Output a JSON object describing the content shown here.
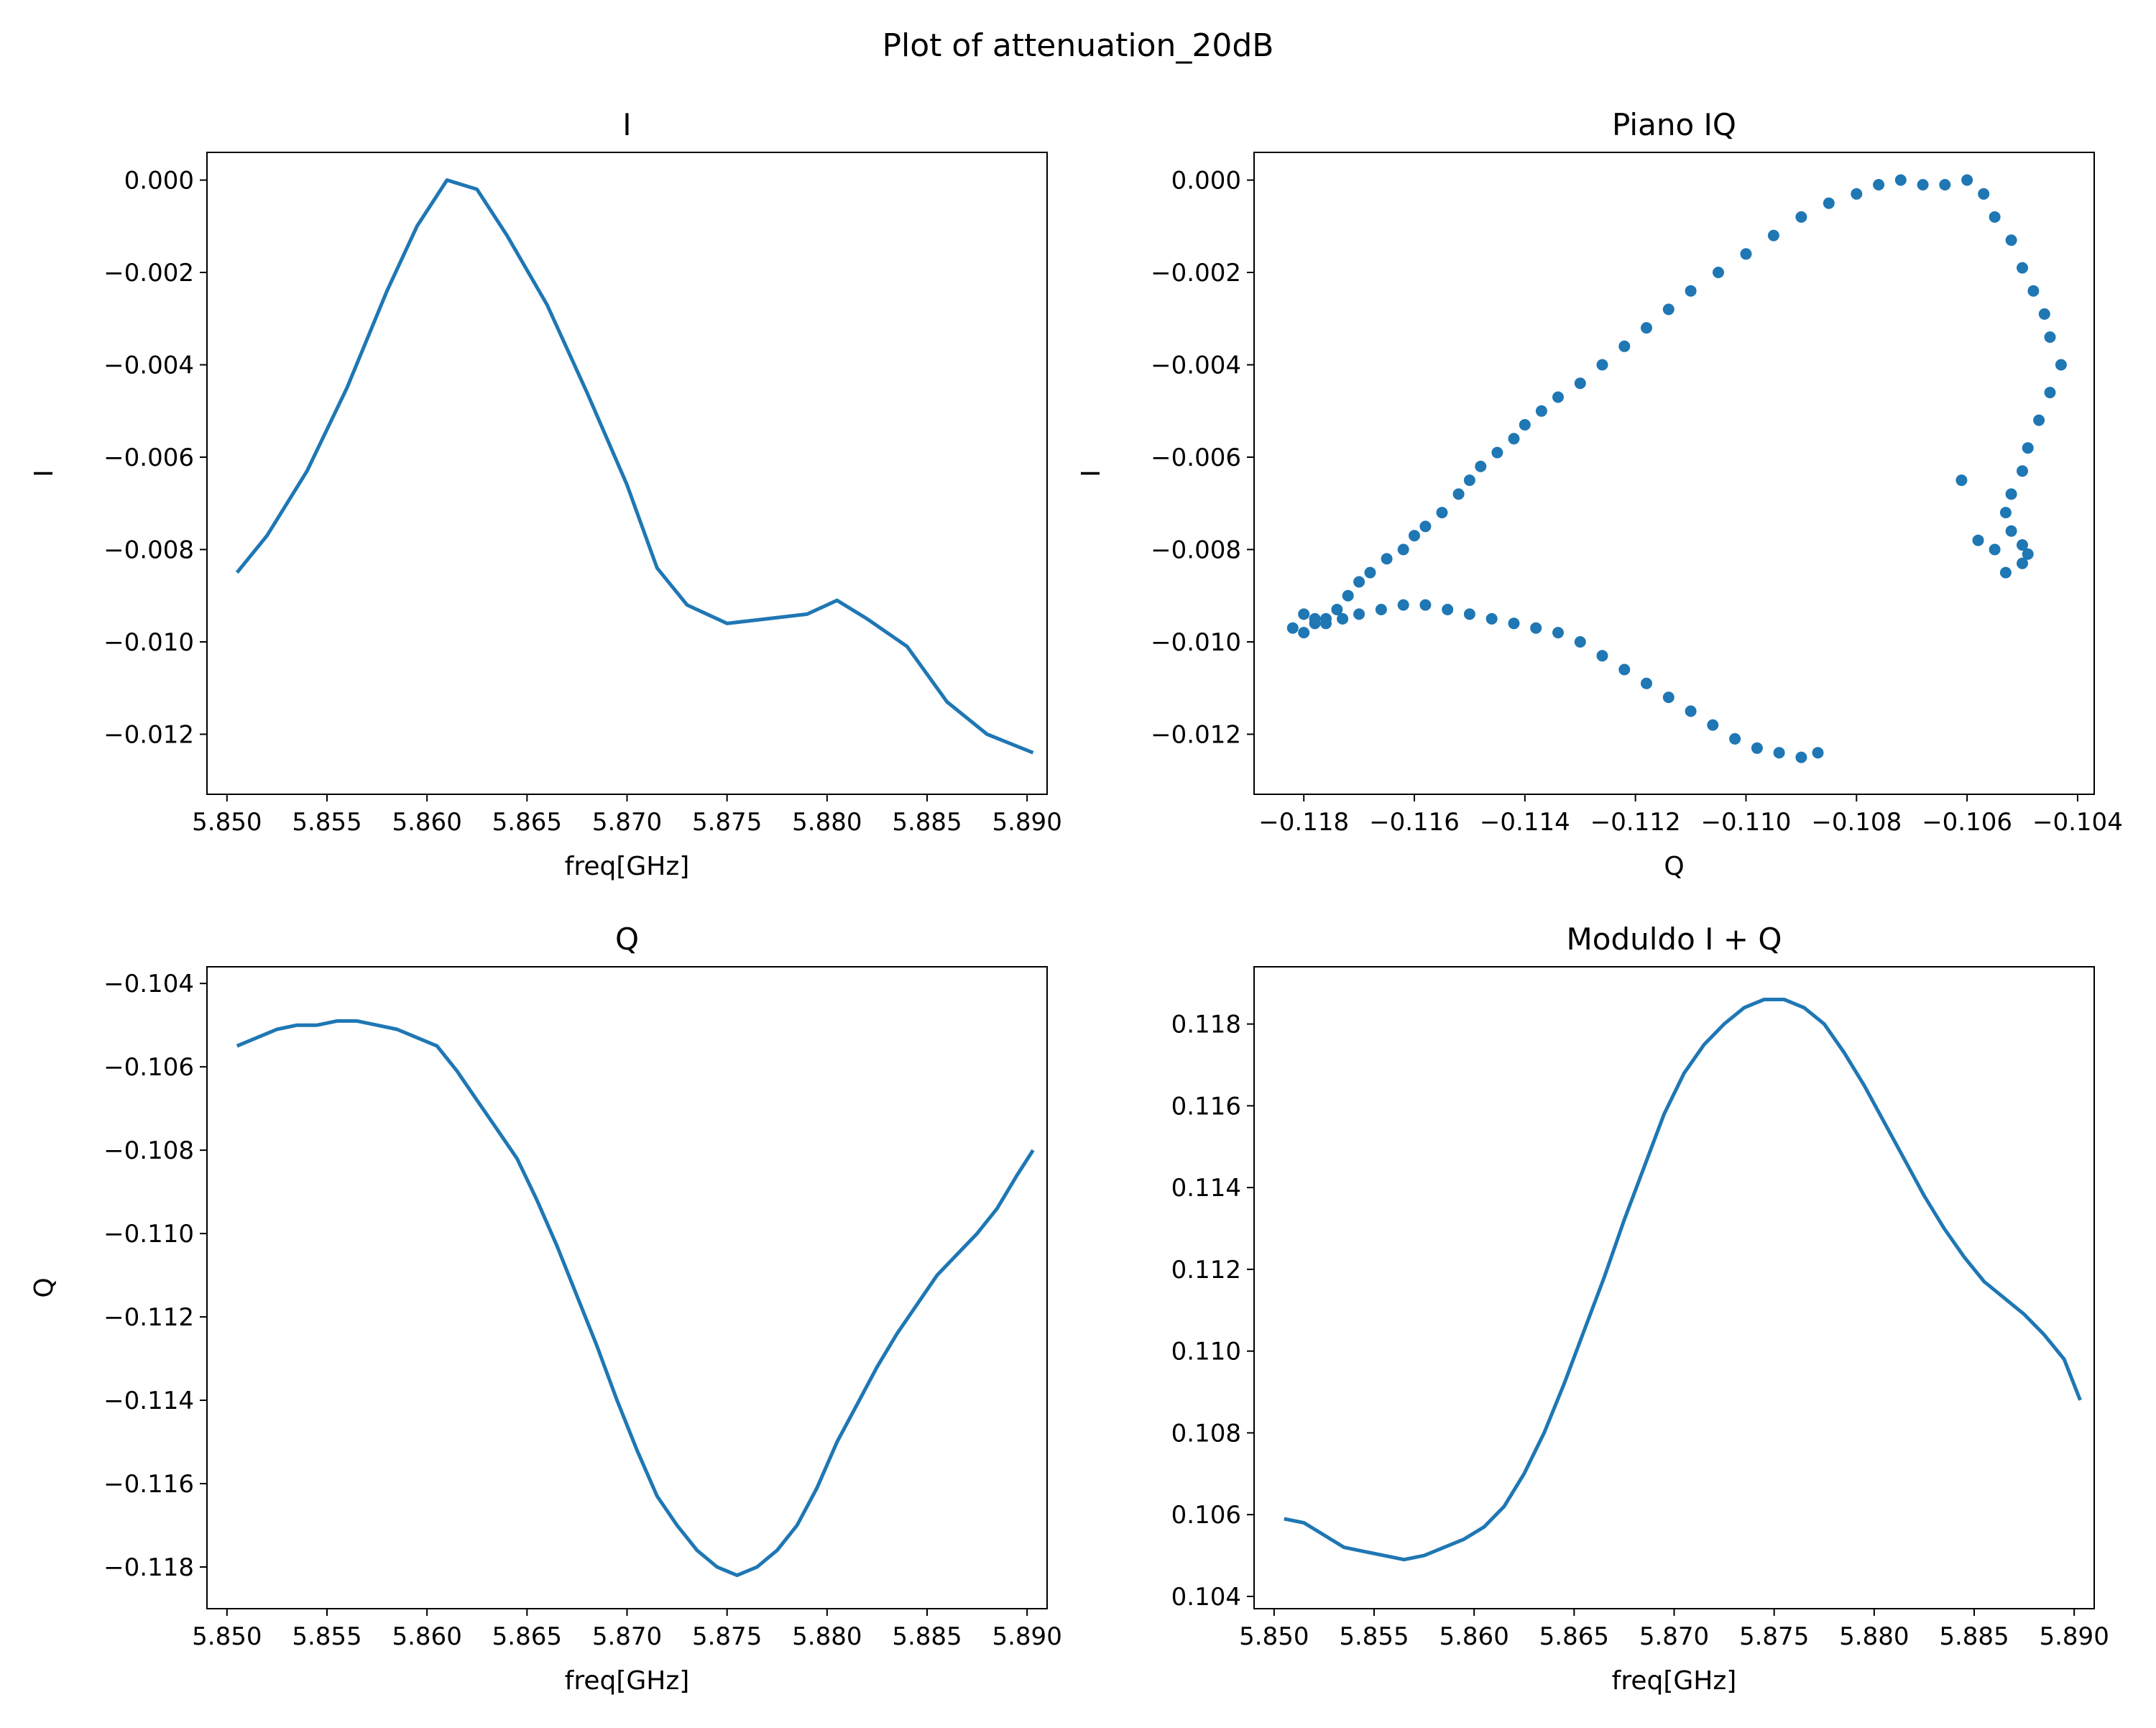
{
  "suptitle": "Plot of attenuation_20dB",
  "colors": {
    "series": "#1f77b4",
    "axes": "#000000",
    "background": "#ffffff"
  },
  "chart_data": [
    {
      "type": "line",
      "title": "I",
      "xlabel": "freq[GHz]",
      "ylabel": "I",
      "xlim": [
        5.849,
        5.891
      ],
      "ylim": [
        -0.0133,
        0.0006
      ],
      "xticks": [
        5.85,
        5.855,
        5.86,
        5.865,
        5.87,
        5.875,
        5.88,
        5.885,
        5.89
      ],
      "xtick_labels": [
        "5.850",
        "5.855",
        "5.860",
        "5.865",
        "5.870",
        "5.875",
        "5.880",
        "5.885",
        "5.890"
      ],
      "yticks": [
        0.0,
        -0.002,
        -0.004,
        -0.006,
        -0.008,
        -0.01,
        -0.012
      ],
      "ytick_labels": [
        "0.000",
        "−0.002",
        "−0.004",
        "−0.006",
        "−0.008",
        "−0.010",
        "−0.012"
      ],
      "grid": false,
      "x": [
        5.8505,
        5.852,
        5.854,
        5.856,
        5.858,
        5.8595,
        5.861,
        5.8625,
        5.864,
        5.866,
        5.868,
        5.87,
        5.8715,
        5.873,
        5.875,
        5.877,
        5.879,
        5.8805,
        5.882,
        5.884,
        5.886,
        5.888,
        5.8903
      ],
      "y": [
        -0.0085,
        -0.0077,
        -0.0063,
        -0.0045,
        -0.0024,
        -0.001,
        0.0,
        -0.0002,
        -0.0012,
        -0.0027,
        -0.0046,
        -0.0066,
        -0.0084,
        -0.0092,
        -0.0096,
        -0.0095,
        -0.0094,
        -0.0091,
        -0.0095,
        -0.0101,
        -0.0113,
        -0.012,
        -0.0124
      ]
    },
    {
      "type": "scatter",
      "title": "Piano IQ",
      "xlabel": "Q",
      "ylabel": "I",
      "xlim": [
        -0.1189,
        -0.1037
      ],
      "ylim": [
        -0.0133,
        0.0006
      ],
      "xticks": [
        -0.118,
        -0.116,
        -0.114,
        -0.112,
        -0.11,
        -0.108,
        -0.106,
        -0.104
      ],
      "xtick_labels": [
        "−0.118",
        "−0.116",
        "−0.114",
        "−0.112",
        "−0.110",
        "−0.108",
        "−0.106",
        "−0.104"
      ],
      "yticks": [
        0.0,
        -0.002,
        -0.004,
        -0.006,
        -0.008,
        -0.01,
        -0.012
      ],
      "ytick_labels": [
        "0.000",
        "−0.002",
        "−0.004",
        "−0.006",
        "−0.008",
        "−0.010",
        "−0.012"
      ],
      "grid": false,
      "x": [
        -0.1182,
        -0.118,
        -0.1178,
        -0.1176,
        -0.1174,
        -0.1172,
        -0.117,
        -0.1168,
        -0.1165,
        -0.1162,
        -0.116,
        -0.1158,
        -0.1155,
        -0.1152,
        -0.115,
        -0.1148,
        -0.1145,
        -0.1142,
        -0.114,
        -0.1137,
        -0.1134,
        -0.113,
        -0.1126,
        -0.1122,
        -0.1118,
        -0.1114,
        -0.111,
        -0.1105,
        -0.11,
        -0.1095,
        -0.109,
        -0.1085,
        -0.108,
        -0.1076,
        -0.1072,
        -0.1068,
        -0.1064,
        -0.106,
        -0.1057,
        -0.1055,
        -0.1052,
        -0.105,
        -0.1048,
        -0.1046,
        -0.1045,
        -0.1043,
        -0.1045,
        -0.1047,
        -0.1049,
        -0.105,
        -0.1052,
        -0.1053,
        -0.1052,
        -0.105,
        -0.1049,
        -0.105,
        -0.1053,
        -0.1055,
        -0.1058,
        -0.1061,
        -0.118,
        -0.1178,
        -0.1176,
        -0.1173,
        -0.117,
        -0.1166,
        -0.1162,
        -0.1158,
        -0.1154,
        -0.115,
        -0.1146,
        -0.1142,
        -0.1138,
        -0.1134,
        -0.113,
        -0.1126,
        -0.1122,
        -0.1118,
        -0.1114,
        -0.111,
        -0.1106,
        -0.1102,
        -0.1098,
        -0.1094,
        -0.109,
        -0.1087
      ],
      "y": [
        -0.0097,
        -0.0098,
        -0.0096,
        -0.0095,
        -0.0093,
        -0.009,
        -0.0087,
        -0.0085,
        -0.0082,
        -0.008,
        -0.0077,
        -0.0075,
        -0.0072,
        -0.0068,
        -0.0065,
        -0.0062,
        -0.0059,
        -0.0056,
        -0.0053,
        -0.005,
        -0.0047,
        -0.0044,
        -0.004,
        -0.0036,
        -0.0032,
        -0.0028,
        -0.0024,
        -0.002,
        -0.0016,
        -0.0012,
        -0.0008,
        -0.0005,
        -0.0003,
        -0.0001,
        0.0,
        -0.0001,
        -0.0001,
        0.0,
        -0.0003,
        -0.0008,
        -0.0013,
        -0.0019,
        -0.0024,
        -0.0029,
        -0.0034,
        -0.004,
        -0.0046,
        -0.0052,
        -0.0058,
        -0.0063,
        -0.0068,
        -0.0072,
        -0.0076,
        -0.0079,
        -0.0081,
        -0.0083,
        -0.0085,
        -0.008,
        -0.0078,
        -0.0065,
        -0.0094,
        -0.0095,
        -0.0096,
        -0.0095,
        -0.0094,
        -0.0093,
        -0.0092,
        -0.0092,
        -0.0093,
        -0.0094,
        -0.0095,
        -0.0096,
        -0.0097,
        -0.0098,
        -0.01,
        -0.0103,
        -0.0106,
        -0.0109,
        -0.0112,
        -0.0115,
        -0.0118,
        -0.0121,
        -0.0123,
        -0.0124,
        -0.0125,
        -0.0124
      ]
    },
    {
      "type": "line",
      "title": "Q",
      "xlabel": "freq[GHz]",
      "ylabel": "Q",
      "xlim": [
        5.849,
        5.891
      ],
      "ylim": [
        -0.119,
        -0.1036
      ],
      "xticks": [
        5.85,
        5.855,
        5.86,
        5.865,
        5.87,
        5.875,
        5.88,
        5.885,
        5.89
      ],
      "xtick_labels": [
        "5.850",
        "5.855",
        "5.860",
        "5.865",
        "5.870",
        "5.875",
        "5.880",
        "5.885",
        "5.890"
      ],
      "yticks": [
        -0.104,
        -0.106,
        -0.108,
        -0.11,
        -0.112,
        -0.114,
        -0.116,
        -0.118
      ],
      "ytick_labels": [
        "−0.104",
        "−0.106",
        "−0.108",
        "−0.110",
        "−0.112",
        "−0.114",
        "−0.116",
        "−0.118"
      ],
      "grid": false,
      "x": [
        5.8505,
        5.8515,
        5.8525,
        5.8535,
        5.8545,
        5.8555,
        5.8565,
        5.8575,
        5.8585,
        5.8595,
        5.8605,
        5.8615,
        5.8625,
        5.8635,
        5.8645,
        5.8655,
        5.8665,
        5.8675,
        5.8685,
        5.8695,
        5.8705,
        5.8715,
        5.8725,
        5.8735,
        5.8745,
        5.8755,
        5.8765,
        5.8775,
        5.8785,
        5.8795,
        5.8805,
        5.8815,
        5.8825,
        5.8835,
        5.8845,
        5.8855,
        5.8865,
        5.8875,
        5.8885,
        5.8895,
        5.8903
      ],
      "y": [
        -0.1055,
        -0.1053,
        -0.1051,
        -0.105,
        -0.105,
        -0.1049,
        -0.1049,
        -0.105,
        -0.1051,
        -0.1053,
        -0.1055,
        -0.1061,
        -0.1068,
        -0.1075,
        -0.1082,
        -0.1092,
        -0.1103,
        -0.1115,
        -0.1127,
        -0.114,
        -0.1152,
        -0.1163,
        -0.117,
        -0.1176,
        -0.118,
        -0.1182,
        -0.118,
        -0.1176,
        -0.117,
        -0.1161,
        -0.115,
        -0.1141,
        -0.1132,
        -0.1124,
        -0.1117,
        -0.111,
        -0.1105,
        -0.11,
        -0.1094,
        -0.1086,
        -0.108
      ]
    },
    {
      "type": "line",
      "title": "Moduldo I + Q",
      "xlabel": "freq[GHz]",
      "ylabel": "",
      "xlim": [
        5.849,
        5.891
      ],
      "ylim": [
        0.1037,
        0.1194
      ],
      "xticks": [
        5.85,
        5.855,
        5.86,
        5.865,
        5.87,
        5.875,
        5.88,
        5.885,
        5.89
      ],
      "xtick_labels": [
        "5.850",
        "5.855",
        "5.860",
        "5.865",
        "5.870",
        "5.875",
        "5.880",
        "5.885",
        "5.890"
      ],
      "yticks": [
        0.104,
        0.106,
        0.108,
        0.11,
        0.112,
        0.114,
        0.116,
        0.118
      ],
      "ytick_labels": [
        "0.104",
        "0.106",
        "0.108",
        "0.110",
        "0.112",
        "0.114",
        "0.116",
        "0.118"
      ],
      "grid": false,
      "x": [
        5.8505,
        5.8515,
        5.8525,
        5.8535,
        5.8545,
        5.8555,
        5.8565,
        5.8575,
        5.8585,
        5.8595,
        5.8605,
        5.8615,
        5.8625,
        5.8635,
        5.8645,
        5.8655,
        5.8665,
        5.8675,
        5.8685,
        5.8695,
        5.8705,
        5.8715,
        5.8725,
        5.8735,
        5.8745,
        5.8755,
        5.8765,
        5.8775,
        5.8785,
        5.8795,
        5.8805,
        5.8815,
        5.8825,
        5.8835,
        5.8845,
        5.8855,
        5.8865,
        5.8875,
        5.8885,
        5.8895,
        5.8903
      ],
      "y": [
        0.1059,
        0.1058,
        0.1055,
        0.1052,
        0.1051,
        0.105,
        0.1049,
        0.105,
        0.1052,
        0.1054,
        0.1057,
        0.1062,
        0.107,
        0.108,
        0.1092,
        0.1105,
        0.1118,
        0.1132,
        0.1145,
        0.1158,
        0.1168,
        0.1175,
        0.118,
        0.1184,
        0.1186,
        0.1186,
        0.1184,
        0.118,
        0.1173,
        0.1165,
        0.1156,
        0.1147,
        0.1138,
        0.113,
        0.1123,
        0.1117,
        0.1113,
        0.1109,
        0.1104,
        0.1098,
        0.1088
      ]
    }
  ]
}
